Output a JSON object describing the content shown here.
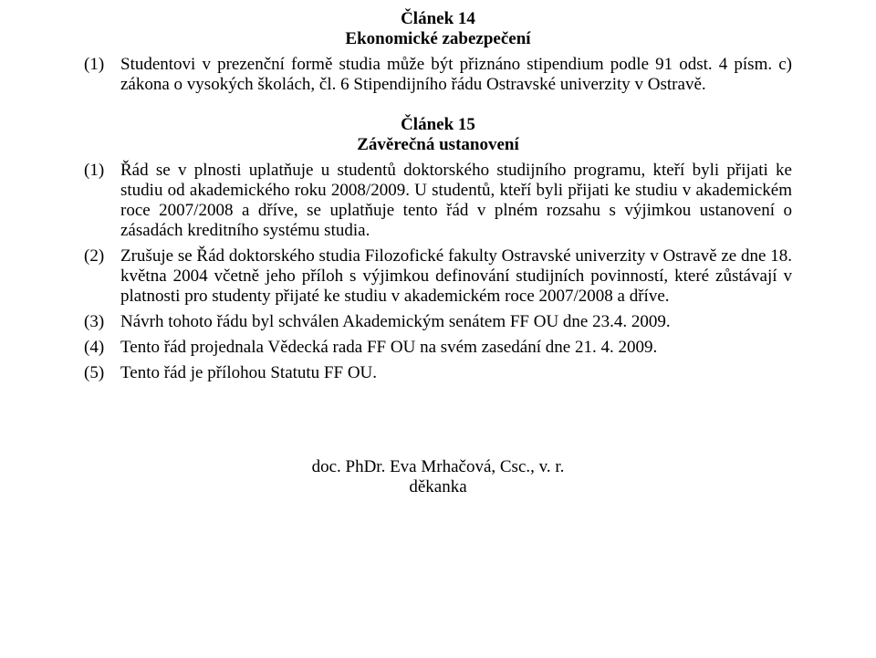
{
  "article14": {
    "heading_line1": "Článek 14",
    "heading_line2": "Ekonomické zabezpečení",
    "p1_num": "(1)",
    "p1_text": "Studentovi v prezenční formě studia může být přiznáno stipendium podle 91 odst. 4 písm. c) zákona o vysokých školách, čl. 6 Stipendijního řádu Ostravské univerzity v Ostravě."
  },
  "article15": {
    "heading_line1": "Článek 15",
    "heading_line2": "Závěrečná ustanovení",
    "p1_num": "(1)",
    "p1_text": "Řád se v plnosti uplatňuje u studentů doktorského studijního programu, kteří byli přijati ke studiu od akademického roku 2008/2009. U studentů, kteří byli přijati ke studiu v akademickém roce 2007/2008 a dříve, se uplatňuje tento řád v plném rozsahu s výjimkou ustanovení o zásadách kreditního systému studia.",
    "p2_num": "(2)",
    "p2_text": "Zrušuje se Řád doktorského studia Filozofické fakulty Ostravské univerzity v Ostravě ze dne 18. května 2004 včetně jeho příloh s výjimkou definování studijních povinností, které zůstávají v platnosti pro studenty přijaté ke studiu v akademickém roce 2007/2008 a dříve.",
    "p3_num": "(3)",
    "p3_text": "Návrh tohoto řádu byl schválen Akademickým senátem FF OU dne 23.4. 2009.",
    "p4_num": "(4)",
    "p4_text": "Tento řád projednala Vědecká rada FF OU na svém zasedání dne 21. 4. 2009.",
    "p5_num": "(5)",
    "p5_text": "Tento řád je přílohou Statutu FF OU."
  },
  "signature": {
    "line1": "doc. PhDr. Eva Mrhačová, Csc., v. r.",
    "line2": "děkanka"
  }
}
